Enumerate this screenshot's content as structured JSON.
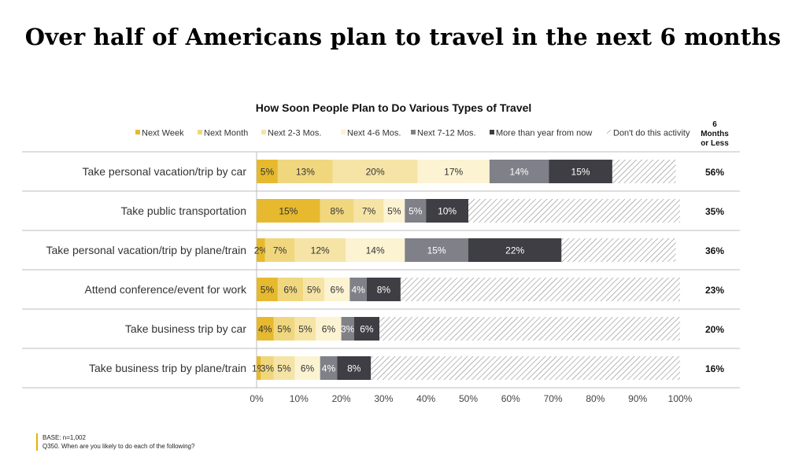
{
  "slide": {
    "headline": "Over half of Americans plan to travel in the next 6 months",
    "footer_base": "BASE: n=1,002",
    "footer_question": "Q350. When are you likely to do each of the following?"
  },
  "chart_data": {
    "type": "bar",
    "orientation": "horizontal",
    "stacked": true,
    "title": "How Soon People Plan to Do Various Types of Travel",
    "xlim": [
      0,
      100
    ],
    "x_ticks": [
      "0%",
      "10%",
      "20%",
      "30%",
      "40%",
      "50%",
      "60%",
      "70%",
      "80%",
      "90%",
      "100%"
    ],
    "legend_position": "top",
    "categories": [
      "Take personal vacation/trip by car",
      "Take public transportation",
      "Take personal vacation/trip by plane/train",
      "Attend conference/event for work",
      "Take business trip by car",
      "Take business trip by plane/train"
    ],
    "series": [
      {
        "name": "Next Week",
        "color": "#e6b92e",
        "label_color": "#333333",
        "values": [
          5,
          15,
          2,
          5,
          4,
          1
        ]
      },
      {
        "name": "Next Month",
        "color": "#f0d77e",
        "label_color": "#333333",
        "values": [
          13,
          8,
          7,
          6,
          5,
          3
        ]
      },
      {
        "name": "Next 2-3 Mos.",
        "color": "#f5e4a6",
        "label_color": "#333333",
        "values": [
          20,
          7,
          12,
          5,
          5,
          5
        ]
      },
      {
        "name": "Next 4-6 Mos.",
        "color": "#fbf3d2",
        "label_color": "#333333",
        "values": [
          17,
          5,
          14,
          6,
          6,
          6
        ]
      },
      {
        "name": "Next 7-12 Mos.",
        "color": "#808089",
        "label_color": "#ffffff",
        "values": [
          14,
          5,
          15,
          4,
          3,
          4
        ]
      },
      {
        "name": "More than year from now",
        "color": "#3e3e44",
        "label_color": "#ffffff",
        "values": [
          15,
          10,
          22,
          8,
          6,
          8
        ]
      },
      {
        "name": "Don't do this activity",
        "color": "hatch",
        "label_color": "#333333",
        "values": [
          15,
          50,
          27,
          66,
          71,
          73
        ],
        "show_labels": false
      }
    ],
    "summary_column": {
      "header": [
        "6",
        "Months",
        "or Less"
      ],
      "values": [
        "56%",
        "35%",
        "36%",
        "23%",
        "20%",
        "16%"
      ]
    }
  }
}
